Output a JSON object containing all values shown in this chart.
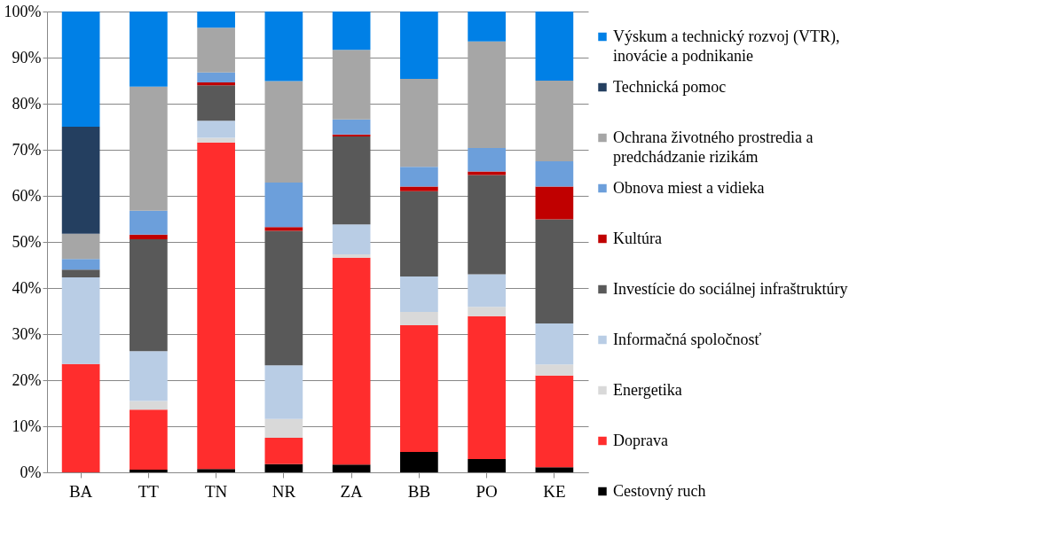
{
  "chart_data": {
    "type": "bar",
    "stacked": true,
    "categories": [
      "BA",
      "TT",
      "TN",
      "NR",
      "ZA",
      "BB",
      "PO",
      "KE"
    ],
    "series": [
      {
        "name": "Cestovný ruch",
        "color": "#000000",
        "values": [
          0,
          0.6,
          0.7,
          1.8,
          1.7,
          4.4,
          2.9,
          1.1
        ]
      },
      {
        "name": "Doprava",
        "color": "#ff2d2d",
        "values": [
          23.5,
          13.0,
          70.9,
          5.7,
          44.9,
          27.5,
          31.0,
          19.9
        ]
      },
      {
        "name": "Energetika",
        "color": "#d9d9d9",
        "values": [
          0,
          1.9,
          1.0,
          4.1,
          0.7,
          2.9,
          2.0,
          2.4
        ]
      },
      {
        "name": "Informačná spoločnosť",
        "color": "#b9cde5",
        "values": [
          18.8,
          10.8,
          3.7,
          11.6,
          6.5,
          7.7,
          7.1,
          8.9
        ]
      },
      {
        "name": "Investície do sociálnej infraštruktúry",
        "color": "#595959",
        "values": [
          1.7,
          24.3,
          7.7,
          29.2,
          19.1,
          18.5,
          21.5,
          22.6
        ]
      },
      {
        "name": "Kultúra",
        "color": "#c00000",
        "values": [
          0,
          1.0,
          0.6,
          0.8,
          0.4,
          1.0,
          0.8,
          7.1
        ]
      },
      {
        "name": "Obnova miest a vidieka",
        "color": "#6c9fdb",
        "values": [
          2.3,
          5.2,
          2.2,
          9.7,
          3.3,
          4.3,
          5.1,
          5.5
        ]
      },
      {
        "name": "Ochrana životného prostredia a predchádzanie rizikám",
        "color": "#a6a6a6",
        "values": [
          5.5,
          26.9,
          9.7,
          22.0,
          15.1,
          19.1,
          23.1,
          17.5
        ]
      },
      {
        "name": "Technická pomoc",
        "color": "#243f60",
        "values": [
          23.2,
          0,
          0,
          0,
          0,
          0,
          0,
          0
        ]
      },
      {
        "name": "Výskum a technický rozvoj (VTR), inovácie a podnikanie",
        "color": "#0080e6",
        "values": [
          25.0,
          16.3,
          3.5,
          15.1,
          8.3,
          14.6,
          6.5,
          15.0
        ]
      }
    ],
    "ylim": [
      0,
      100
    ],
    "yticks": [
      {
        "value": 0,
        "label": "0%"
      },
      {
        "value": 10,
        "label": "10%"
      },
      {
        "value": 20,
        "label": "20%"
      },
      {
        "value": 30,
        "label": "30%"
      },
      {
        "value": 40,
        "label": "40%"
      },
      {
        "value": 50,
        "label": "50%"
      },
      {
        "value": 60,
        "label": "60%"
      },
      {
        "value": 70,
        "label": "70%"
      },
      {
        "value": 80,
        "label": "80%"
      },
      {
        "value": 90,
        "label": "90%"
      },
      {
        "value": 100,
        "label": "100%"
      }
    ],
    "grid": "y",
    "legend": "right"
  }
}
